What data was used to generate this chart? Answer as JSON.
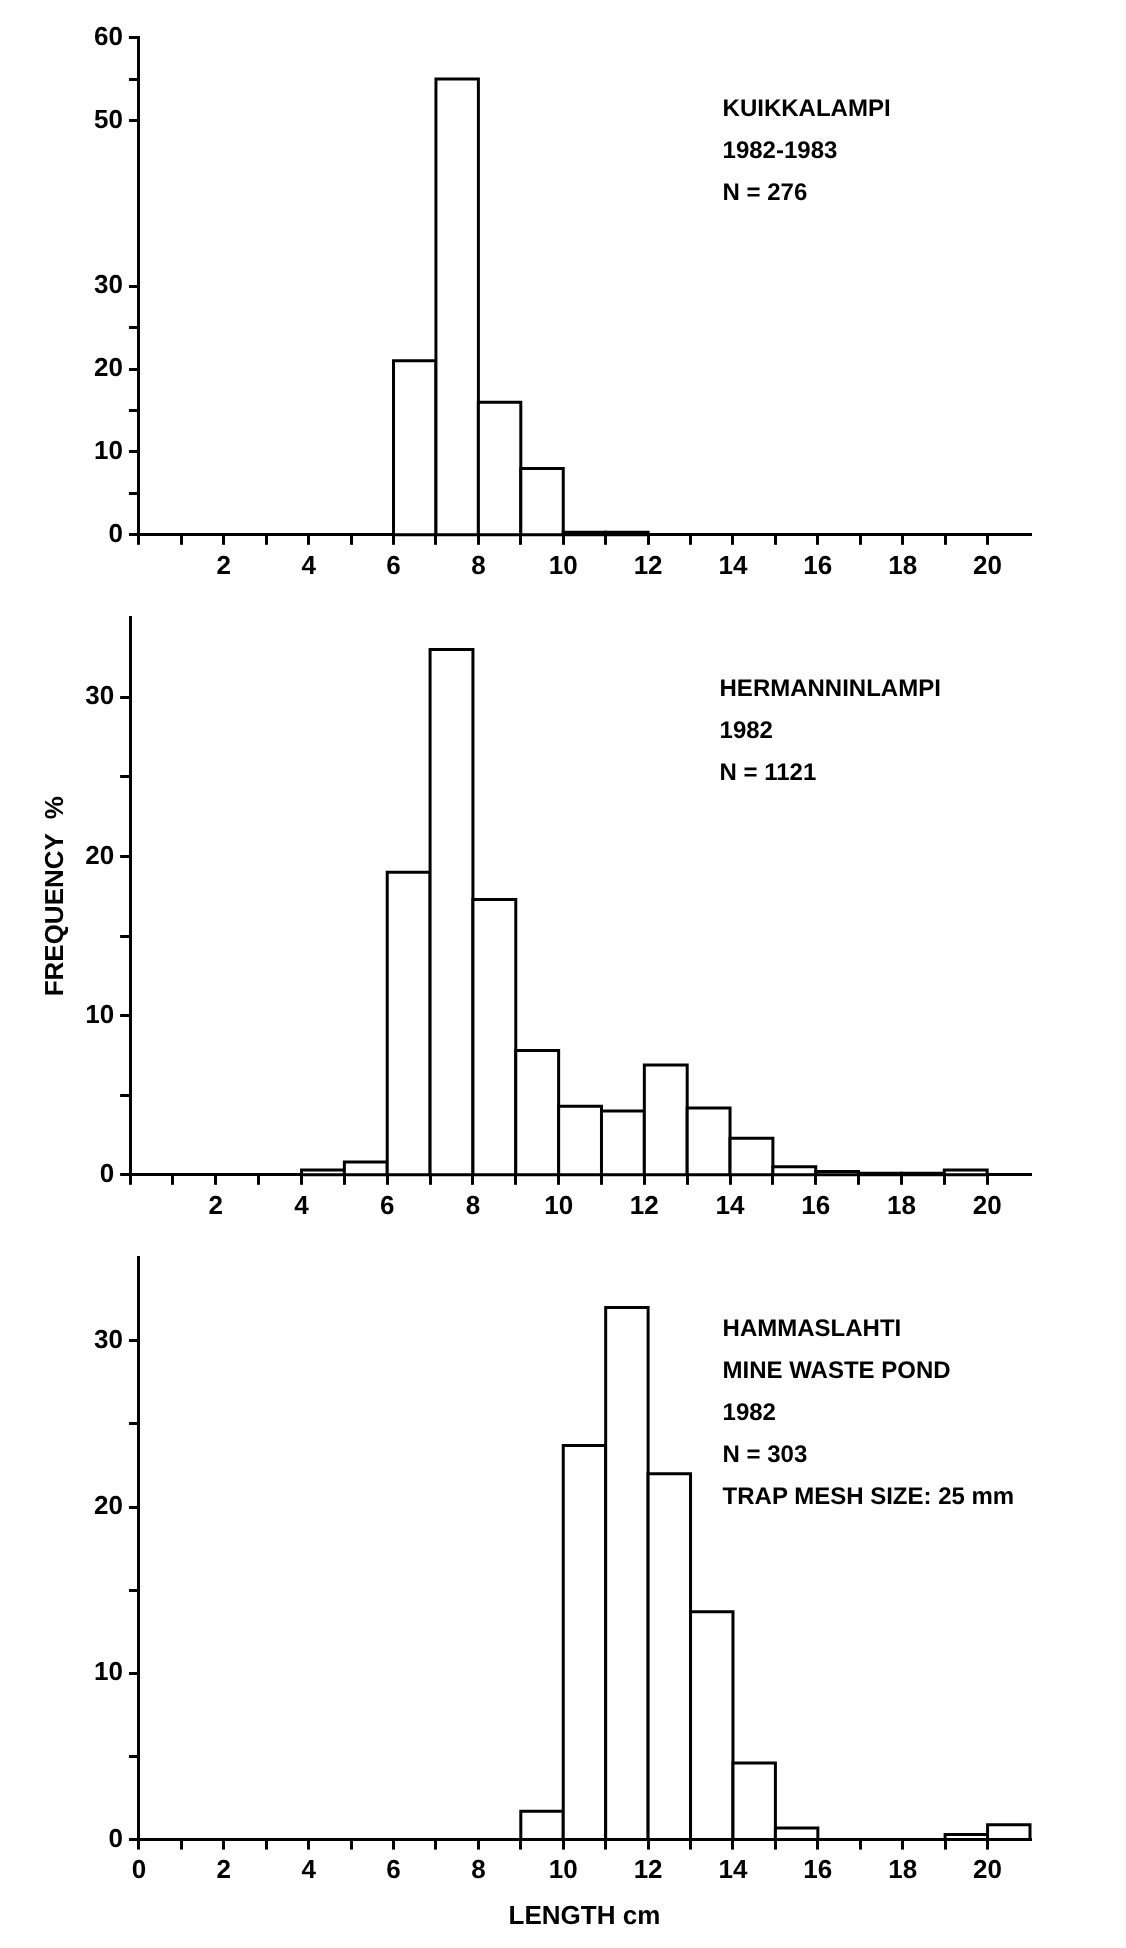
{
  "chart_data": [
    {
      "type": "histogram",
      "bins": [
        6,
        7,
        8,
        9,
        10,
        11,
        12
      ],
      "values": [
        21,
        55,
        16,
        8,
        0.3,
        0.3
      ],
      "color": "#ffffff",
      "xlim": [
        0,
        21
      ],
      "ylim": [
        0,
        60
      ],
      "xticks": [
        {
          "value": 0,
          "label": null
        },
        {
          "value": 1,
          "label": null
        },
        2,
        {
          "value": 3,
          "label": null
        },
        4,
        {
          "value": 5,
          "label": null
        },
        6,
        {
          "value": 7,
          "label": null
        },
        8,
        {
          "value": 9,
          "label": null
        },
        10,
        {
          "value": 11,
          "label": null
        },
        12,
        {
          "value": 13,
          "label": null
        },
        14,
        {
          "value": 15,
          "label": null
        },
        16,
        {
          "value": 17,
          "label": null
        },
        18,
        {
          "value": 19,
          "label": null
        },
        20
      ],
      "yticks": [
        0,
        {
          "value": 5,
          "label": null
        },
        10,
        {
          "value": 15,
          "label": null
        },
        20,
        {
          "value": 25,
          "label": null
        },
        30,
        50,
        {
          "value": 55,
          "label": null
        },
        60
      ],
      "annotations": [
        "KUIKKALAMPI",
        "1982-1983",
        "N = 276"
      ]
    },
    {
      "type": "histogram",
      "bins": [
        4,
        5,
        6,
        7,
        8,
        9,
        10,
        11,
        12,
        13,
        14,
        15,
        16,
        17,
        18,
        19,
        20
      ],
      "values": [
        0.3,
        0.8,
        19,
        33,
        17.3,
        7.8,
        4.3,
        4,
        6.9,
        4.2,
        2.3,
        0.5,
        0.2,
        0.1,
        0.1,
        0.3
      ],
      "color": "#ffffff",
      "xlim": [
        0,
        21
      ],
      "ylim": [
        0,
        35
      ],
      "xticks": [
        {
          "value": 0,
          "label": null
        },
        {
          "value": 1,
          "label": null
        },
        2,
        {
          "value": 3,
          "label": null
        },
        4,
        {
          "value": 5,
          "label": null
        },
        6,
        {
          "value": 7,
          "label": null
        },
        8,
        {
          "value": 9,
          "label": null
        },
        10,
        {
          "value": 11,
          "label": null
        },
        12,
        {
          "value": 13,
          "label": null
        },
        14,
        {
          "value": 15,
          "label": null
        },
        16,
        {
          "value": 17,
          "label": null
        },
        18,
        {
          "value": 19,
          "label": null
        },
        20
      ],
      "yticks": [
        0,
        {
          "value": 5,
          "label": null
        },
        10,
        {
          "value": 15,
          "label": null
        },
        20,
        {
          "value": 25,
          "label": null
        },
        30
      ],
      "ylabel": "FREQUENCY  %",
      "annotations": [
        "HERMANNINLAMPI",
        "1982",
        "N = 1121"
      ]
    },
    {
      "type": "histogram",
      "bins": [
        9,
        10,
        11,
        12,
        13,
        14,
        15,
        16,
        19,
        20,
        21
      ],
      "values": [
        1.7,
        23.7,
        32,
        22,
        13.7,
        4.6,
        0.7,
        null,
        0.3,
        0.9
      ],
      "color": "#ffffff",
      "xlim": [
        0,
        21
      ],
      "ylim": [
        0,
        35
      ],
      "xticks": [
        0,
        {
          "value": 1,
          "label": null
        },
        2,
        {
          "value": 3,
          "label": null
        },
        4,
        {
          "value": 5,
          "label": null
        },
        6,
        {
          "value": 7,
          "label": null
        },
        8,
        {
          "value": 9,
          "label": null
        },
        10,
        {
          "value": 11,
          "label": null
        },
        12,
        {
          "value": 13,
          "label": null
        },
        14,
        {
          "value": 15,
          "label": null
        },
        16,
        {
          "value": 17,
          "label": null
        },
        18,
        {
          "value": 19,
          "label": null
        },
        20
      ],
      "yticks": [
        0,
        {
          "value": 5,
          "label": null
        },
        10,
        {
          "value": 15,
          "label": null
        },
        20,
        {
          "value": 25,
          "label": null
        },
        30
      ],
      "xlabel": "LENGTH cm",
      "annotations": [
        "HAMMASLAHTI",
        "MINE WASTE POND",
        "1982",
        "N = 303",
        "TRAP MESH SIZE: 25 mm"
      ]
    }
  ]
}
